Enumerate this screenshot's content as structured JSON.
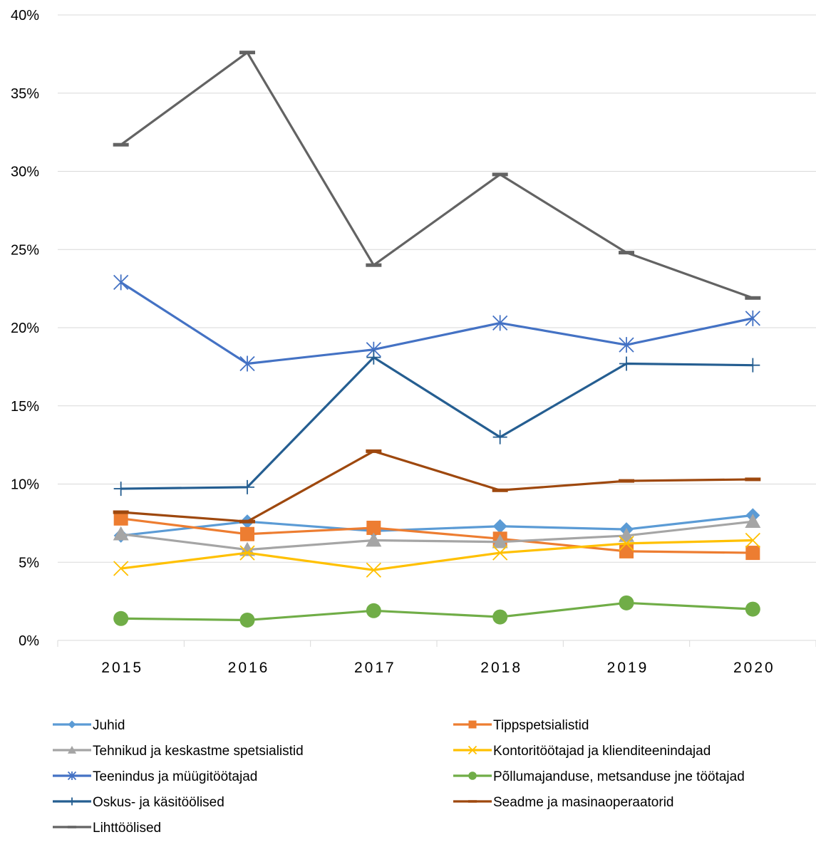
{
  "chart_data": {
    "type": "line",
    "title": "",
    "xlabel": "",
    "ylabel": "",
    "ylim": [
      0,
      40
    ],
    "y_tick_labels": [
      "0%",
      "5%",
      "10%",
      "15%",
      "20%",
      "25%",
      "30%",
      "35%",
      "40%"
    ],
    "categories": [
      "2015",
      "2016",
      "2017",
      "2018",
      "2019",
      "2020"
    ],
    "grid": "horizontal",
    "legend_position": "bottom",
    "series": [
      {
        "name": "Juhid",
        "color": "#5B9BD5",
        "marker": "diamond",
        "values": [
          6.7,
          7.6,
          7.0,
          7.3,
          7.1,
          8.0
        ]
      },
      {
        "name": "Tippspetsialistid",
        "color": "#ED7D31",
        "marker": "square",
        "values": [
          7.8,
          6.8,
          7.2,
          6.5,
          5.7,
          5.6
        ]
      },
      {
        "name": "Tehnikud ja keskastme spetsialistid",
        "color": "#A5A5A5",
        "marker": "triangle",
        "values": [
          6.8,
          5.8,
          6.4,
          6.3,
          6.7,
          7.6
        ]
      },
      {
        "name": "Kontoritöötajad ja klienditeenindajad",
        "color": "#FFC000",
        "marker": "x",
        "values": [
          4.6,
          5.6,
          4.5,
          5.6,
          6.2,
          6.4
        ]
      },
      {
        "name": "Teenindus ja müügitöötajad",
        "color": "#4472C4",
        "marker": "star",
        "values": [
          22.9,
          17.7,
          18.6,
          20.3,
          18.9,
          20.6
        ]
      },
      {
        "name": "Põllumajanduse, metsanduse jne töötajad",
        "color": "#70AD47",
        "marker": "circle",
        "values": [
          1.4,
          1.3,
          1.9,
          1.5,
          2.4,
          2.0
        ]
      },
      {
        "name": "Oskus- ja käsitöölised",
        "color": "#255E91",
        "marker": "plus",
        "values": [
          9.7,
          9.8,
          18.1,
          13.0,
          17.7,
          17.6
        ]
      },
      {
        "name": "Seadme ja masinaoperaatorid",
        "color": "#9E480E",
        "marker": "dash",
        "values": [
          8.2,
          7.6,
          12.1,
          9.6,
          10.2,
          10.3
        ]
      },
      {
        "name": "Lihttöölised",
        "color": "#636363",
        "marker": "dash",
        "values": [
          31.7,
          37.6,
          24.0,
          29.8,
          24.8,
          21.9
        ]
      }
    ]
  }
}
